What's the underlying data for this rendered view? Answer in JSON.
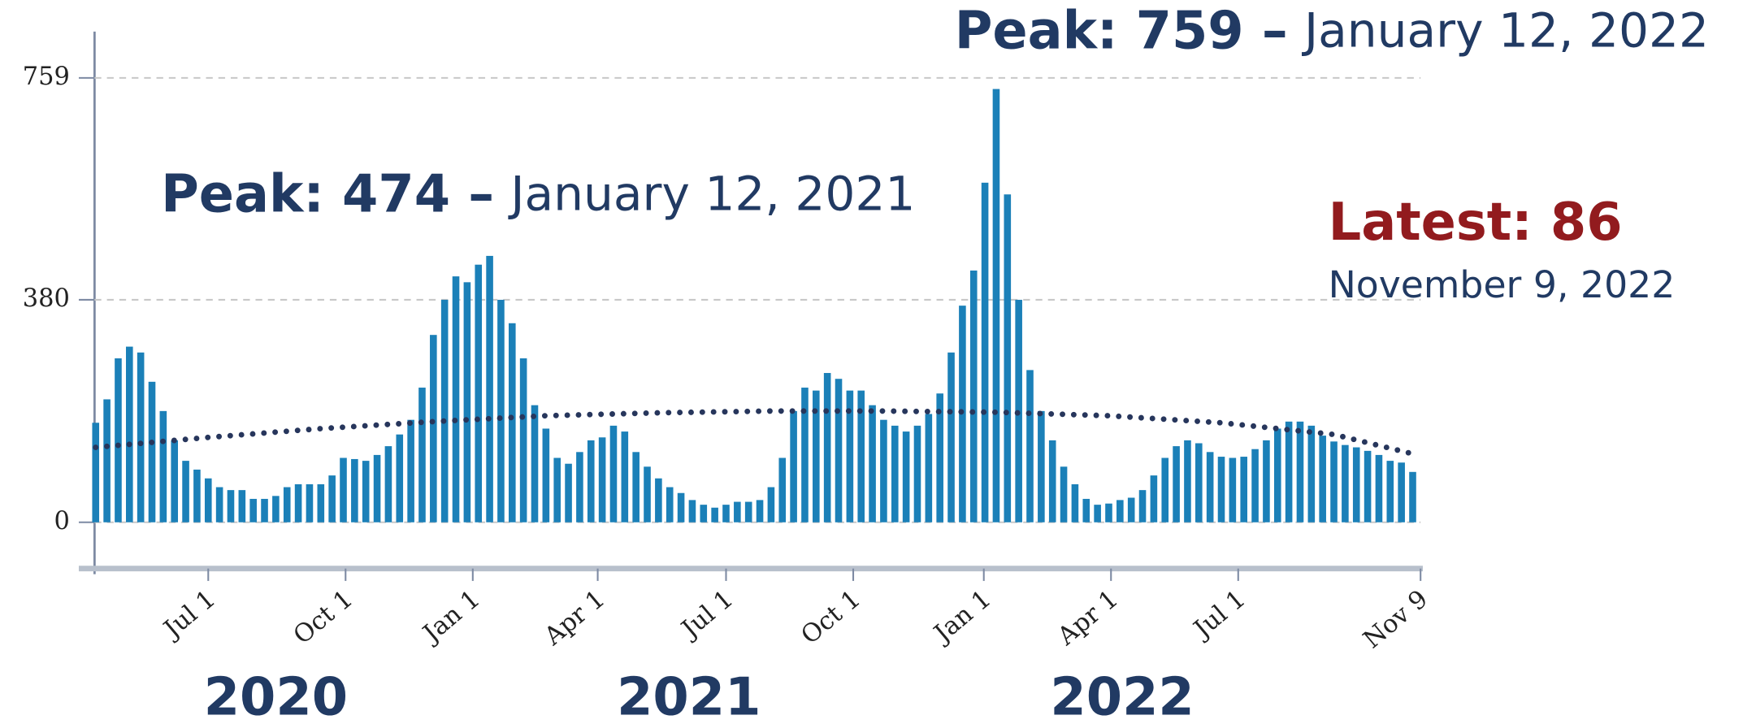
{
  "chart_data": {
    "type": "bar",
    "color": "#1b80b8",
    "categories": [
      null,
      null,
      null,
      null,
      null,
      null,
      null,
      null,
      null,
      null,
      null,
      null,
      null,
      null,
      null,
      null,
      null,
      null,
      null,
      null,
      null,
      null,
      null,
      null,
      null,
      null,
      null,
      null,
      null,
      null,
      null,
      null,
      null,
      null,
      null,
      null,
      null,
      null,
      null,
      null,
      null,
      null,
      null,
      null,
      null,
      null,
      null,
      null,
      null,
      null,
      null,
      null,
      null,
      null,
      null,
      null,
      null,
      null,
      null,
      null,
      null,
      null,
      null,
      null,
      null,
      null,
      null,
      null,
      null,
      null,
      null,
      null,
      null,
      null,
      null,
      null,
      null,
      null,
      null,
      null,
      null,
      null,
      null,
      null,
      null,
      null,
      null,
      null,
      null,
      null,
      null,
      null,
      null,
      null,
      null,
      null,
      null,
      null,
      null,
      null,
      null,
      null,
      null,
      null,
      null,
      null,
      null,
      null,
      null,
      null,
      null,
      null,
      null,
      null,
      null,
      null,
      null,
      null
    ],
    "values": [
      170,
      210,
      280,
      300,
      290,
      240,
      190,
      140,
      105,
      90,
      75,
      60,
      55,
      55,
      40,
      40,
      45,
      60,
      65,
      65,
      65,
      80,
      110,
      108,
      105,
      115,
      130,
      150,
      175,
      230,
      320,
      380,
      420,
      410,
      440,
      455,
      380,
      340,
      280,
      200,
      160,
      110,
      100,
      120,
      140,
      145,
      165,
      155,
      120,
      95,
      75,
      60,
      50,
      38,
      30,
      25,
      30,
      35,
      35,
      38,
      60,
      110,
      190,
      230,
      225,
      255,
      245,
      225,
      225,
      200,
      175,
      165,
      155,
      165,
      185,
      220,
      290,
      370,
      430,
      580,
      740,
      560,
      380,
      260,
      190,
      140,
      95,
      65,
      40,
      30,
      32,
      38,
      42,
      55,
      80,
      110,
      130,
      140,
      135,
      120,
      112,
      110,
      112,
      125,
      140,
      160,
      172,
      172,
      165,
      148,
      138,
      132,
      128,
      122,
      115,
      105,
      102,
      86
    ],
    "trend": {
      "color": "#27365c",
      "x": [
        0,
        10,
        20,
        30,
        40,
        50,
        60,
        70,
        80,
        90,
        100,
        110,
        117
      ],
      "values": [
        128,
        145,
        160,
        172,
        182,
        187,
        190,
        190,
        188,
        182,
        170,
        150,
        117
      ]
    },
    "xlim": [
      -0.1,
      117.7
    ],
    "xticks": [
      {
        "value": 10,
        "label": "Jul 1"
      },
      {
        "value": 22.2,
        "label": "Oct 1"
      },
      {
        "value": 33.5,
        "label": "Jan 1"
      },
      {
        "value": 44.6,
        "label": "Apr 1"
      },
      {
        "value": 56,
        "label": "Jul 1"
      },
      {
        "value": 67.3,
        "label": "Oct 1"
      },
      {
        "value": 78.9,
        "label": "Jan 1"
      },
      {
        "value": 90.2,
        "label": "Apr 1"
      },
      {
        "value": 101.5,
        "label": "Jul 1"
      },
      {
        "value": 117.7,
        "label": "Nov 9"
      }
    ],
    "years": [
      {
        "value": 16,
        "label": "2020"
      },
      {
        "value": 52.7,
        "label": "2021"
      },
      {
        "value": 91.2,
        "label": "2022"
      }
    ],
    "ylim": [
      -79,
      838
    ],
    "yticks": [
      0,
      380,
      759
    ],
    "grid": true,
    "annotations": [
      {
        "bold": "Peak: 759 –",
        "text": "January 12, 2022"
      },
      {
        "bold": "Peak: 474 –",
        "text": "January 12, 2021"
      },
      {
        "bold": "Latest: 86",
        "text": "November 9, 2022"
      }
    ]
  }
}
